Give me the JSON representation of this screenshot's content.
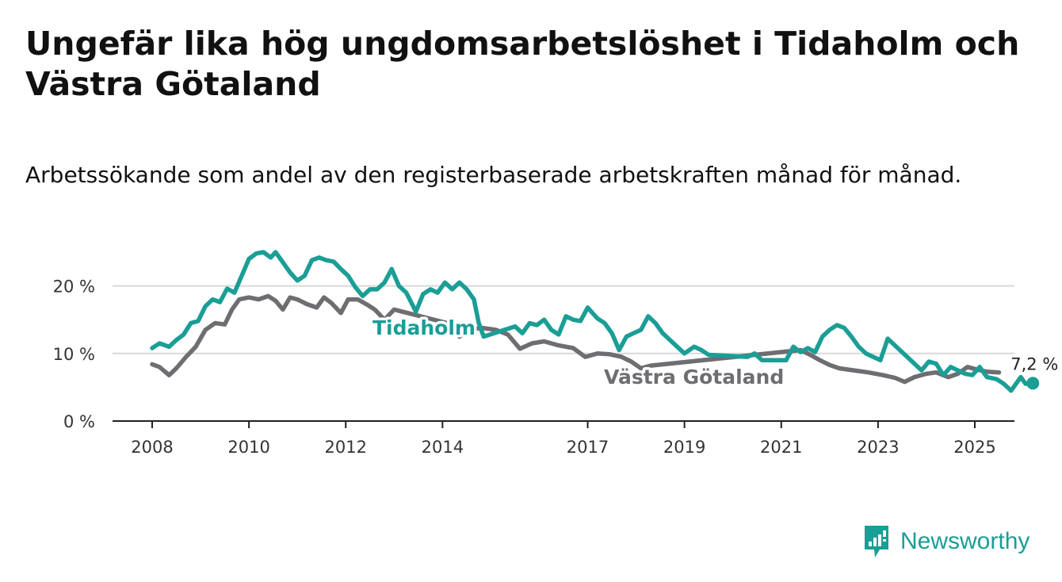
{
  "title": "Ungefär lika hög ungdomsarbetslöshet i Tidaholm och Västra Götaland",
  "subtitle": "Arbetssökande som andel av den registerbaserade arbetskraften månad för månad.",
  "brand": {
    "name": "Newsworthy",
    "icon": "newsworthy-logo-icon",
    "color": "#1a9e96"
  },
  "chart_data": {
    "type": "line",
    "title": "Ungefär lika hög ungdomsarbetslöshet i Tidaholm och Västra Götaland",
    "subtitle": "Arbetssökande som andel av den registerbaserade arbetskraften månad för månad.",
    "xlabel": "",
    "ylabel": "",
    "xlim": [
      2007.6,
      2026.3
    ],
    "ylim": [
      0,
      25
    ],
    "grid": true,
    "x_ticks": [
      {
        "value": 2008,
        "label": "2008"
      },
      {
        "value": 2010,
        "label": "2010"
      },
      {
        "value": 2012,
        "label": "2012"
      },
      {
        "value": 2014,
        "label": "2014"
      },
      {
        "value": 2017,
        "label": "2017"
      },
      {
        "value": 2019,
        "label": "2019"
      },
      {
        "value": 2021,
        "label": "2021"
      },
      {
        "value": 2023,
        "label": "2023"
      },
      {
        "value": 2025,
        "label": "2025"
      }
    ],
    "y_ticks": [
      {
        "value": 0,
        "label": "0 %"
      },
      {
        "value": 10,
        "label": "10 %"
      },
      {
        "value": 20,
        "label": "20 %"
      }
    ],
    "end_label": "7,2 %",
    "series": [
      {
        "name": "Västra Götaland",
        "color": "#6e6e72",
        "points": [
          [
            2008.0,
            8.4
          ],
          [
            2008.15,
            8.0
          ],
          [
            2008.35,
            6.8
          ],
          [
            2008.5,
            7.8
          ],
          [
            2008.7,
            9.5
          ],
          [
            2008.9,
            11.0
          ],
          [
            2009.1,
            13.5
          ],
          [
            2009.3,
            14.5
          ],
          [
            2009.5,
            14.3
          ],
          [
            2009.65,
            16.5
          ],
          [
            2009.8,
            18.0
          ],
          [
            2010.0,
            18.3
          ],
          [
            2010.2,
            18.0
          ],
          [
            2010.4,
            18.5
          ],
          [
            2010.55,
            17.8
          ],
          [
            2010.7,
            16.5
          ],
          [
            2010.85,
            18.3
          ],
          [
            2011.0,
            18.0
          ],
          [
            2011.2,
            17.3
          ],
          [
            2011.4,
            16.8
          ],
          [
            2011.55,
            18.3
          ],
          [
            2011.7,
            17.5
          ],
          [
            2011.9,
            16.0
          ],
          [
            2012.05,
            18.0
          ],
          [
            2012.25,
            18.0
          ],
          [
            2012.45,
            17.2
          ],
          [
            2012.6,
            16.5
          ],
          [
            2012.8,
            15.0
          ],
          [
            2013.0,
            16.5
          ],
          [
            2014.1,
            14.5
          ],
          [
            2014.35,
            12.5
          ],
          [
            2014.55,
            13.5
          ],
          [
            2014.8,
            13.8
          ],
          [
            2015.1,
            13.5
          ],
          [
            2015.35,
            12.8
          ],
          [
            2015.6,
            10.7
          ],
          [
            2015.85,
            11.5
          ],
          [
            2016.1,
            11.8
          ],
          [
            2016.4,
            11.2
          ],
          [
            2016.7,
            10.8
          ],
          [
            2016.95,
            9.5
          ],
          [
            2017.2,
            10.0
          ],
          [
            2017.45,
            9.9
          ],
          [
            2017.7,
            9.5
          ],
          [
            2017.9,
            8.8
          ],
          [
            2018.1,
            7.8
          ],
          [
            2018.3,
            8.2
          ],
          [
            2021.4,
            10.5
          ],
          [
            2021.6,
            9.8
          ],
          [
            2021.8,
            9.0
          ],
          [
            2022.0,
            8.3
          ],
          [
            2022.2,
            7.8
          ],
          [
            2022.5,
            7.5
          ],
          [
            2022.8,
            7.2
          ],
          [
            2023.1,
            6.8
          ],
          [
            2023.35,
            6.4
          ],
          [
            2023.55,
            5.8
          ],
          [
            2023.75,
            6.5
          ],
          [
            2024.0,
            7.0
          ],
          [
            2024.2,
            7.2
          ],
          [
            2024.45,
            6.5
          ],
          [
            2024.65,
            7.0
          ],
          [
            2024.85,
            8.0
          ],
          [
            2025.05,
            7.6
          ],
          [
            2025.25,
            7.3
          ],
          [
            2025.5,
            7.2
          ]
        ]
      },
      {
        "name": "Tidaholm",
        "color": "#1a9e96",
        "points": [
          [
            2008.0,
            10.8
          ],
          [
            2008.15,
            11.5
          ],
          [
            2008.35,
            11.0
          ],
          [
            2008.5,
            12.0
          ],
          [
            2008.65,
            12.8
          ],
          [
            2008.8,
            14.5
          ],
          [
            2008.95,
            14.8
          ],
          [
            2009.1,
            17.0
          ],
          [
            2009.25,
            18.0
          ],
          [
            2009.4,
            17.6
          ],
          [
            2009.55,
            19.6
          ],
          [
            2009.7,
            19.0
          ],
          [
            2009.85,
            21.5
          ],
          [
            2010.0,
            24.0
          ],
          [
            2010.15,
            24.8
          ],
          [
            2010.3,
            25.0
          ],
          [
            2010.45,
            24.2
          ],
          [
            2010.55,
            25.0
          ],
          [
            2010.7,
            23.5
          ],
          [
            2010.85,
            22.0
          ],
          [
            2011.0,
            20.8
          ],
          [
            2011.15,
            21.5
          ],
          [
            2011.3,
            23.8
          ],
          [
            2011.45,
            24.2
          ],
          [
            2011.6,
            23.8
          ],
          [
            2011.75,
            23.6
          ],
          [
            2011.9,
            22.5
          ],
          [
            2012.05,
            21.5
          ],
          [
            2012.2,
            19.8
          ],
          [
            2012.35,
            18.5
          ],
          [
            2012.5,
            19.5
          ],
          [
            2012.65,
            19.5
          ],
          [
            2012.8,
            20.5
          ],
          [
            2012.95,
            22.5
          ],
          [
            2013.1,
            20.0
          ],
          [
            2013.25,
            19.0
          ],
          [
            2013.45,
            16.2
          ],
          [
            2013.6,
            18.8
          ],
          [
            2013.75,
            19.5
          ],
          [
            2013.9,
            19.0
          ],
          [
            2014.05,
            20.5
          ],
          [
            2014.2,
            19.5
          ],
          [
            2014.35,
            20.5
          ],
          [
            2014.5,
            19.5
          ],
          [
            2014.65,
            18.0
          ],
          [
            2014.75,
            14.5
          ],
          [
            2014.85,
            12.5
          ],
          [
            2015.5,
            14.0
          ],
          [
            2015.65,
            13.0
          ],
          [
            2015.8,
            14.5
          ],
          [
            2015.95,
            14.2
          ],
          [
            2016.1,
            15.0
          ],
          [
            2016.25,
            13.5
          ],
          [
            2016.4,
            12.8
          ],
          [
            2016.55,
            15.5
          ],
          [
            2016.7,
            15.0
          ],
          [
            2016.85,
            14.8
          ],
          [
            2017.0,
            16.8
          ],
          [
            2017.2,
            15.2
          ],
          [
            2017.35,
            14.5
          ],
          [
            2017.5,
            13.0
          ],
          [
            2017.65,
            10.5
          ],
          [
            2017.8,
            12.5
          ],
          [
            2017.95,
            13.0
          ],
          [
            2018.1,
            13.5
          ],
          [
            2018.25,
            15.5
          ],
          [
            2018.4,
            14.5
          ],
          [
            2018.55,
            13.0
          ],
          [
            2018.7,
            12.0
          ],
          [
            2018.85,
            11.0
          ],
          [
            2019.0,
            10.0
          ],
          [
            2019.2,
            11.0
          ],
          [
            2019.35,
            10.5
          ],
          [
            2019.5,
            9.8
          ],
          [
            2020.3,
            9.5
          ],
          [
            2020.45,
            10.0
          ],
          [
            2020.6,
            9.0
          ],
          [
            2021.1,
            9.0
          ],
          [
            2021.25,
            11.0
          ],
          [
            2021.4,
            10.2
          ],
          [
            2021.55,
            10.8
          ],
          [
            2021.7,
            10.2
          ],
          [
            2021.85,
            12.5
          ],
          [
            2022.0,
            13.5
          ],
          [
            2022.15,
            14.2
          ],
          [
            2022.3,
            13.8
          ],
          [
            2022.45,
            12.5
          ],
          [
            2022.6,
            11.0
          ],
          [
            2022.75,
            10.0
          ],
          [
            2022.9,
            9.5
          ],
          [
            2023.05,
            9.0
          ],
          [
            2023.2,
            12.2
          ],
          [
            2023.9,
            7.5
          ],
          [
            2024.05,
            8.8
          ],
          [
            2024.2,
            8.5
          ],
          [
            2024.35,
            6.8
          ],
          [
            2024.5,
            8.0
          ],
          [
            2024.65,
            7.5
          ],
          [
            2024.8,
            7.0
          ],
          [
            2024.95,
            6.8
          ],
          [
            2025.1,
            8.0
          ],
          [
            2025.25,
            6.5
          ],
          [
            2025.45,
            6.2
          ],
          [
            2025.6,
            5.5
          ],
          [
            2025.75,
            4.5
          ],
          [
            2025.85,
            5.5
          ],
          [
            2025.95,
            6.5
          ],
          [
            2026.05,
            5.5
          ],
          [
            2026.2,
            5.6
          ]
        ]
      }
    ]
  }
}
